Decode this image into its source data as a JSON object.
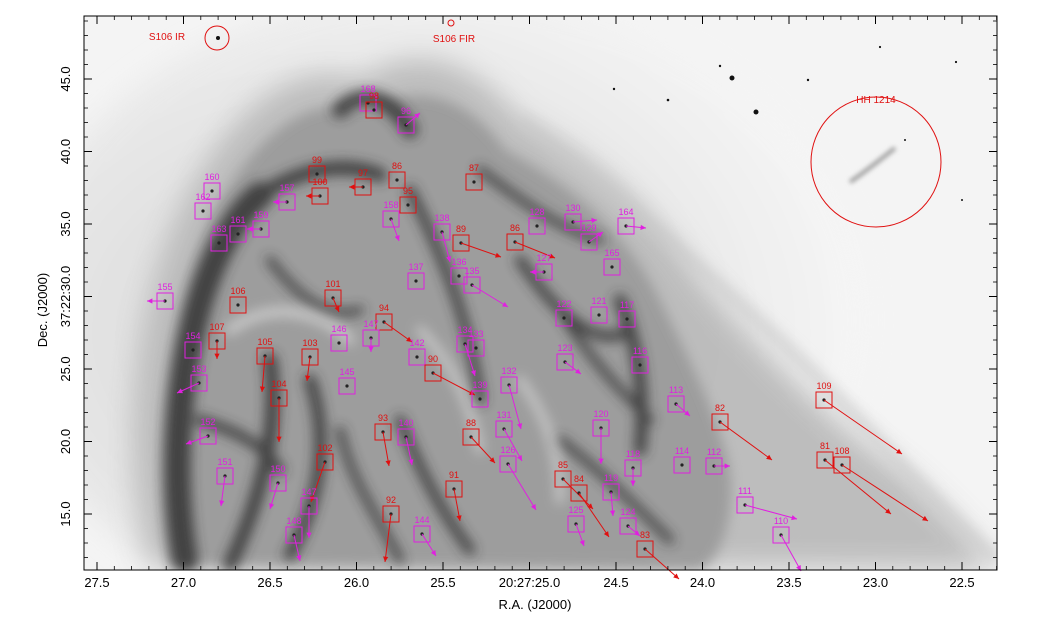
{
  "colors": {
    "knot_red": "#e01010",
    "knot_magenta": "#e020e0",
    "nebula_dark": "#303030",
    "frame": "#000000"
  },
  "axes": {
    "xlabel": "R.A. (J2000)",
    "ylabel": "Dec. (J2000)",
    "x_ticks": [
      "27.5",
      "27.0",
      "26.5",
      "26.0",
      "25.5",
      "20:27:25.0",
      "24.5",
      "24.0",
      "23.5",
      "23.0",
      "22.5"
    ],
    "y_ticks": [
      "15.0",
      "20.0",
      "25.0",
      "37:22:30.0",
      "35.0",
      "40.0",
      "45.0"
    ]
  },
  "regions": [
    {
      "label": "S106 IR",
      "kind": "circle"
    },
    {
      "label": "S106  FIR",
      "kind": "circle"
    },
    {
      "label": "HH 1214",
      "kind": "circle"
    }
  ],
  "knots": [
    {
      "id": "168",
      "c": "m",
      "arrow": "none"
    },
    {
      "id": "98",
      "c": "r",
      "arrow": "none"
    },
    {
      "id": "96",
      "c": "m",
      "arrow": "ne"
    },
    {
      "id": "99",
      "c": "r",
      "arrow": "none"
    },
    {
      "id": "100",
      "c": "r",
      "arrow": "w"
    },
    {
      "id": "97",
      "c": "r",
      "arrow": "w"
    },
    {
      "id": "86",
      "c": "r",
      "arrow": "none"
    },
    {
      "id": "95",
      "c": "r",
      "arrow": "none"
    },
    {
      "id": "87",
      "c": "r",
      "arrow": "none"
    },
    {
      "id": "160",
      "c": "m",
      "arrow": "none"
    },
    {
      "id": "157",
      "c": "m",
      "arrow": "w"
    },
    {
      "id": "162",
      "c": "m",
      "arrow": "none"
    },
    {
      "id": "161",
      "c": "m",
      "arrow": "none"
    },
    {
      "id": "159",
      "c": "m",
      "arrow": "w"
    },
    {
      "id": "158",
      "c": "m",
      "arrow": "s"
    },
    {
      "id": "163",
      "c": "m",
      "arrow": "none"
    },
    {
      "id": "138",
      "c": "m",
      "arrow": "s"
    },
    {
      "id": "89",
      "c": "r",
      "arrow": "se"
    },
    {
      "id": "86b",
      "c": "r",
      "arrow": "se"
    },
    {
      "id": "128",
      "c": "m",
      "arrow": "none"
    },
    {
      "id": "130",
      "c": "m",
      "arrow": "e"
    },
    {
      "id": "129",
      "c": "m",
      "arrow": "ne"
    },
    {
      "id": "164",
      "c": "m",
      "arrow": "e"
    },
    {
      "id": "165",
      "c": "m",
      "arrow": "none"
    },
    {
      "id": "127",
      "c": "m",
      "arrow": "w"
    },
    {
      "id": "136",
      "c": "m",
      "arrow": "none"
    },
    {
      "id": "135",
      "c": "m",
      "arrow": "se"
    },
    {
      "id": "137",
      "c": "m",
      "arrow": "none"
    },
    {
      "id": "155",
      "c": "m",
      "arrow": "w"
    },
    {
      "id": "106",
      "c": "r",
      "arrow": "none"
    },
    {
      "id": "101",
      "c": "r",
      "arrow": "s"
    },
    {
      "id": "122",
      "c": "m",
      "arrow": "none"
    },
    {
      "id": "121",
      "c": "m",
      "arrow": "none"
    },
    {
      "id": "117",
      "c": "m",
      "arrow": "none"
    },
    {
      "id": "94",
      "c": "r",
      "arrow": "se"
    },
    {
      "id": "107",
      "c": "r",
      "arrow": "s"
    },
    {
      "id": "154",
      "c": "m",
      "arrow": "none"
    },
    {
      "id": "146",
      "c": "m",
      "arrow": "none"
    },
    {
      "id": "147",
      "c": "m",
      "arrow": "s"
    },
    {
      "id": "142",
      "c": "m",
      "arrow": "none"
    },
    {
      "id": "134",
      "c": "m",
      "arrow": "s"
    },
    {
      "id": "133",
      "c": "m",
      "arrow": "none"
    },
    {
      "id": "105",
      "c": "r",
      "arrow": "s"
    },
    {
      "id": "103",
      "c": "r",
      "arrow": "s"
    },
    {
      "id": "90",
      "c": "r",
      "arrow": "se"
    },
    {
      "id": "123",
      "c": "m",
      "arrow": "se"
    },
    {
      "id": "116",
      "c": "m",
      "arrow": "none"
    },
    {
      "id": "153",
      "c": "m",
      "arrow": "sw"
    },
    {
      "id": "145",
      "c": "m",
      "arrow": "none"
    },
    {
      "id": "139",
      "c": "m",
      "arrow": "none"
    },
    {
      "id": "132",
      "c": "m",
      "arrow": "se"
    },
    {
      "id": "104",
      "c": "r",
      "arrow": "s"
    },
    {
      "id": "113",
      "c": "m",
      "arrow": "se"
    },
    {
      "id": "82",
      "c": "r",
      "arrow": "se"
    },
    {
      "id": "109",
      "c": "r",
      "arrow": "se"
    },
    {
      "id": "152",
      "c": "m",
      "arrow": "sw"
    },
    {
      "id": "93",
      "c": "r",
      "arrow": "s"
    },
    {
      "id": "140",
      "c": "m",
      "arrow": "s"
    },
    {
      "id": "88",
      "c": "r",
      "arrow": "se"
    },
    {
      "id": "131",
      "c": "m",
      "arrow": "se"
    },
    {
      "id": "120",
      "c": "m",
      "arrow": "s"
    },
    {
      "id": "102",
      "c": "r",
      "arrow": "sw"
    },
    {
      "id": "126",
      "c": "m",
      "arrow": "se"
    },
    {
      "id": "118",
      "c": "m",
      "arrow": "s"
    },
    {
      "id": "114",
      "c": "m",
      "arrow": "none"
    },
    {
      "id": "112",
      "c": "m",
      "arrow": "e"
    },
    {
      "id": "81",
      "c": "r",
      "arrow": "se"
    },
    {
      "id": "108",
      "c": "r",
      "arrow": "se"
    },
    {
      "id": "151",
      "c": "m",
      "arrow": "s"
    },
    {
      "id": "150",
      "c": "m",
      "arrow": "sw"
    },
    {
      "id": "85",
      "c": "r",
      "arrow": "se"
    },
    {
      "id": "84",
      "c": "r",
      "arrow": "se"
    },
    {
      "id": "91",
      "c": "r",
      "arrow": "s"
    },
    {
      "id": "119",
      "c": "m",
      "arrow": "s"
    },
    {
      "id": "147b",
      "c": "m",
      "arrow": "s"
    },
    {
      "id": "92",
      "c": "r",
      "arrow": "s"
    },
    {
      "id": "111",
      "c": "m",
      "arrow": "e"
    },
    {
      "id": "125",
      "c": "m",
      "arrow": "s"
    },
    {
      "id": "124",
      "c": "m",
      "arrow": "se"
    },
    {
      "id": "110",
      "c": "m",
      "arrow": "se"
    },
    {
      "id": "148",
      "c": "m",
      "arrow": "s"
    },
    {
      "id": "144",
      "c": "m",
      "arrow": "se"
    },
    {
      "id": "83",
      "c": "r",
      "arrow": "se"
    }
  ]
}
